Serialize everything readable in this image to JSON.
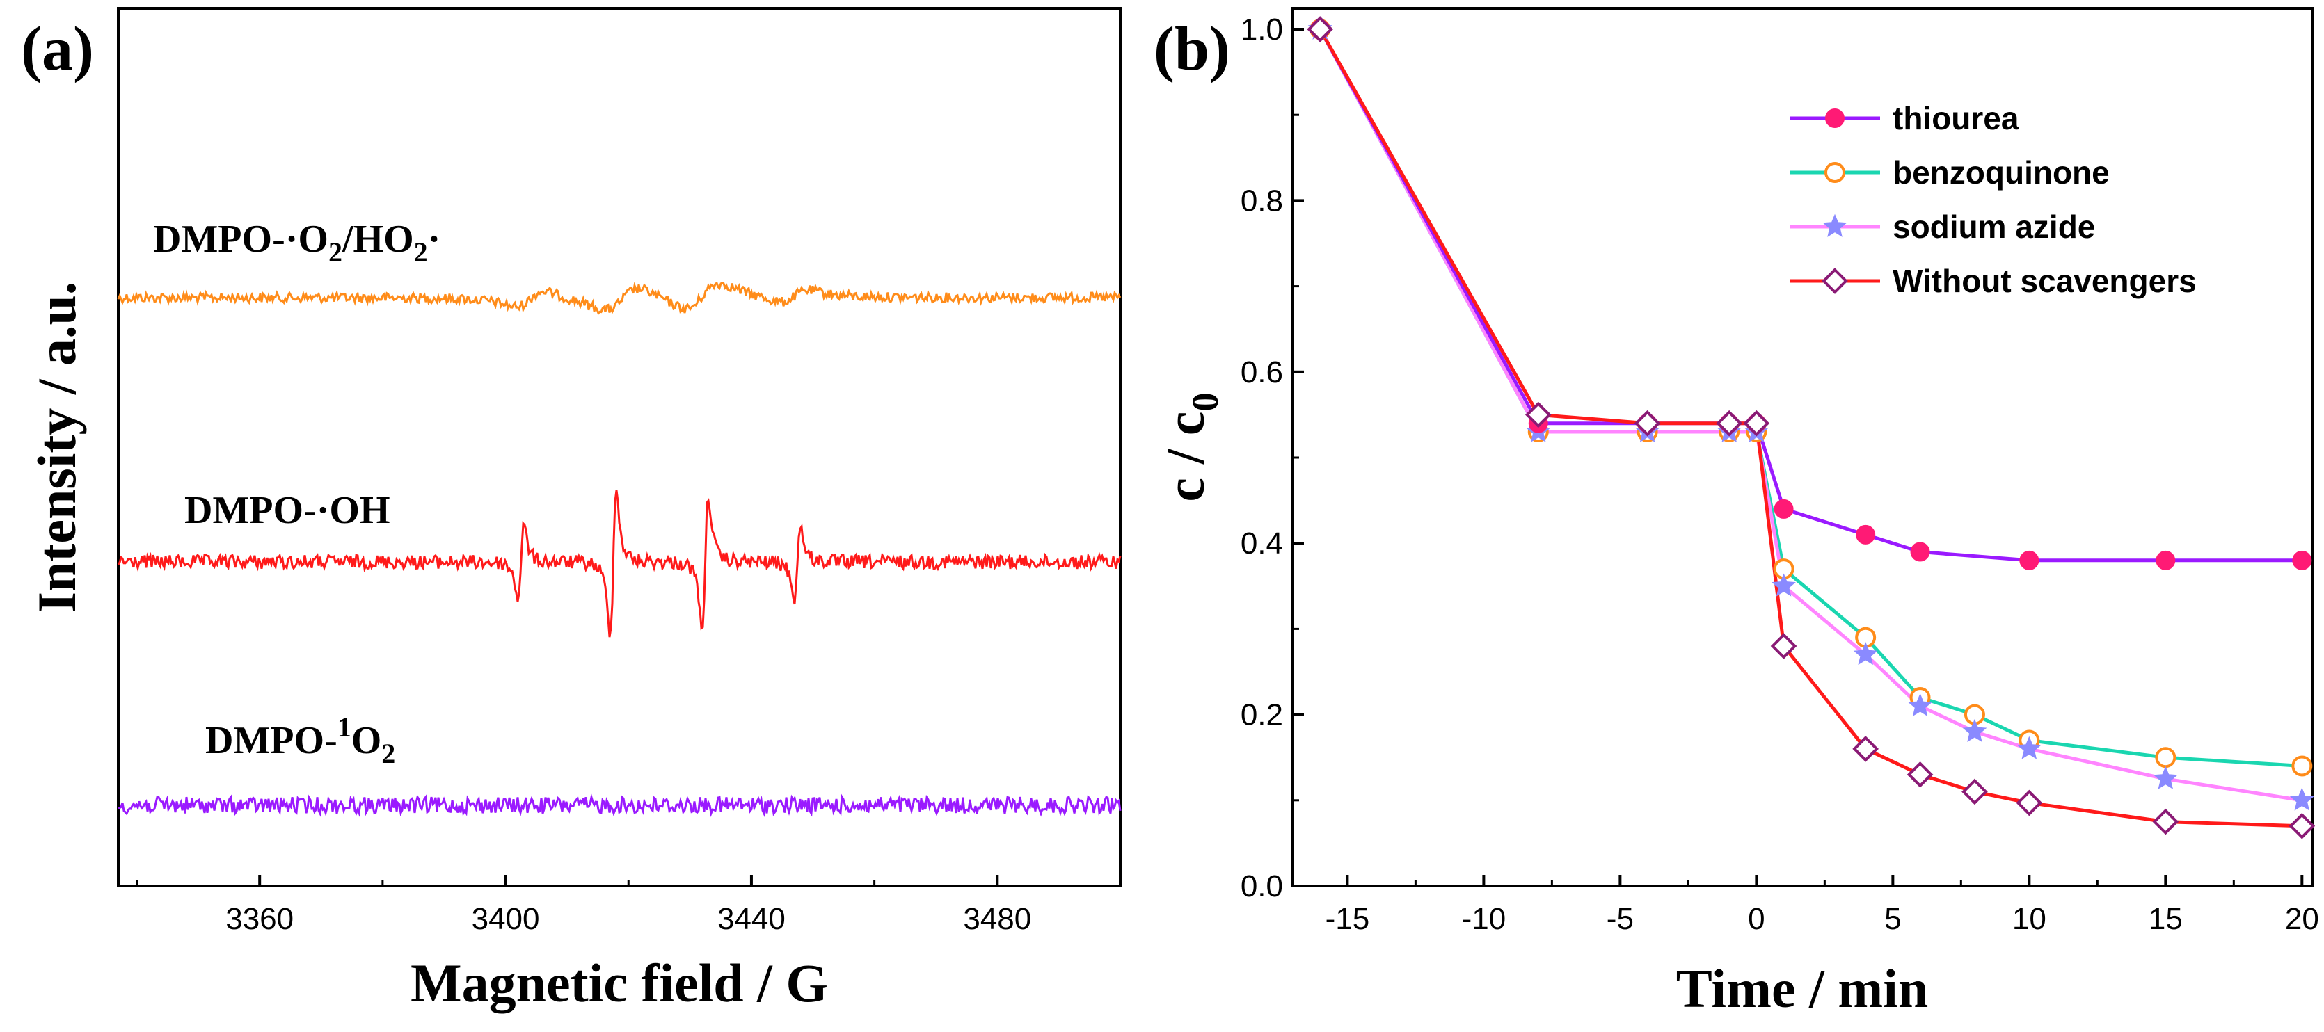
{
  "chart_data": [
    {
      "panel": "(a)",
      "type": "line",
      "title": "",
      "xlabel": "Magnetic field / G",
      "ylabel": "Intensity / a.u.",
      "xlim": [
        3337,
        3500
      ],
      "xticks": [
        3360,
        3400,
        3440,
        3480
      ],
      "grid": false,
      "series": [
        {
          "name": "DMPO-·O2/HO2·",
          "name_main": "DMPO-·O",
          "name_sub1": "2",
          "name_mid": "/HO",
          "name_sub2": "2",
          "name_tail": "·",
          "color": "#ff8c1a"
        },
        {
          "name": "DMPO-·OH",
          "color": "#ff1a1a"
        },
        {
          "name": "DMPO-1O2",
          "name_main": "DMPO-",
          "name_sup": "1",
          "name_mid": "O",
          "name_sub": "2",
          "color": "#9a1aff"
        }
      ]
    },
    {
      "panel": "(b)",
      "type": "line",
      "title": "",
      "xlabel": "Time / min",
      "ylabel_main": "c / c",
      "ylabel_sub": "0",
      "xlim": [
        -17,
        20.4
      ],
      "ylim": [
        0,
        1.0
      ],
      "xticks": [
        -15,
        -10,
        -5,
        0,
        5,
        10,
        15,
        20
      ],
      "yticks": [
        0.0,
        0.2,
        0.4,
        0.6,
        0.8,
        1.0
      ],
      "ytick_labels": [
        "0.0",
        "0.2",
        "0.4",
        "0.6",
        "0.8",
        "1.0"
      ],
      "grid": false,
      "legend_position": "top-right",
      "x": [
        -16,
        -8,
        -4,
        -1,
        0,
        1,
        4,
        6,
        8,
        10,
        15,
        20
      ],
      "series": [
        {
          "name": "thiourea",
          "line_color": "#9a1aff",
          "marker": "filled-circle",
          "marker_color": "#ff1a75",
          "values": [
            1.0,
            0.54,
            0.54,
            0.54,
            0.54,
            0.44,
            0.41,
            0.39,
            null,
            0.38,
            0.38,
            0.38
          ]
        },
        {
          "name": "benzoquinone",
          "line_color": "#1ad6b0",
          "marker": "open-circle",
          "marker_color": "#ff8c1a",
          "values": [
            1.0,
            0.53,
            0.53,
            0.53,
            0.53,
            0.37,
            0.29,
            0.22,
            0.2,
            0.17,
            0.15,
            0.14
          ]
        },
        {
          "name": "sodium azide",
          "line_color": "#ff85ff",
          "marker": "star",
          "marker_color": "#8a8aff",
          "values": [
            1.0,
            0.53,
            0.53,
            0.53,
            0.53,
            0.35,
            0.27,
            0.21,
            0.18,
            0.16,
            0.125,
            0.1
          ]
        },
        {
          "name": "Without scavengers",
          "line_color": "#ff1a1a",
          "marker": "open-diamond",
          "marker_color": "#8a1a75",
          "values": [
            1.0,
            0.55,
            0.54,
            0.54,
            0.54,
            0.28,
            0.16,
            0.13,
            0.11,
            0.097,
            0.075,
            0.07
          ]
        }
      ]
    }
  ]
}
